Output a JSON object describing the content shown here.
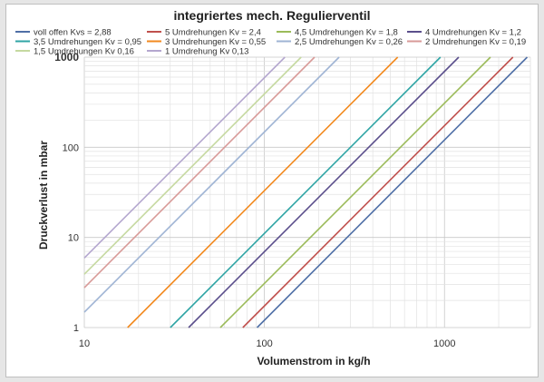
{
  "chart_data": {
    "type": "line",
    "title": "integriertes mech. Regulierventil",
    "xlabel": "Volumenstrom in kg/h",
    "ylabel": "Druckverlust in mbar",
    "xscale": "log",
    "yscale": "log",
    "xlim": [
      10,
      3000
    ],
    "ylim": [
      1,
      1000
    ],
    "xticks": [
      "10",
      "100",
      "1000"
    ],
    "yticks": [
      "1",
      "10",
      "100",
      "1000"
    ],
    "grid": true,
    "legend_position": "top",
    "series": [
      {
        "name": "voll offen Kvs = 2,88",
        "kv": 2.88,
        "color": "#4f6fa6"
      },
      {
        "name": "5 Umdrehungen Kv = 2,4",
        "kv": 2.4,
        "color": "#c0504d"
      },
      {
        "name": "4,5 Umdrehungen Kv = 1,8",
        "kv": 1.8,
        "color": "#9bbb59"
      },
      {
        "name": "4 Umdrehungen Kv = 1,2",
        "kv": 1.2,
        "color": "#5b4f8c"
      },
      {
        "name": "3,5 Umdrehungen Kv = 0,95",
        "kv": 0.95,
        "color": "#2fa5a5"
      },
      {
        "name": "3 Umdrehungen Kv = 0,55",
        "kv": 0.55,
        "color": "#f28a1f"
      },
      {
        "name": "2,5 Umdrehungen Kv = 0,26",
        "kv": 0.26,
        "color": "#9fb4d4"
      },
      {
        "name": "2 Umdrehungen Kv = 0,19",
        "kv": 0.19,
        "color": "#d89a98"
      },
      {
        "name": "1,5 Umdrehungen Kv 0,16",
        "kv": 0.16,
        "color": "#c5d9a0"
      },
      {
        "name": "1 Umdrehung Kv 0,13",
        "kv": 0.13,
        "color": "#b4a7cf"
      }
    ]
  }
}
